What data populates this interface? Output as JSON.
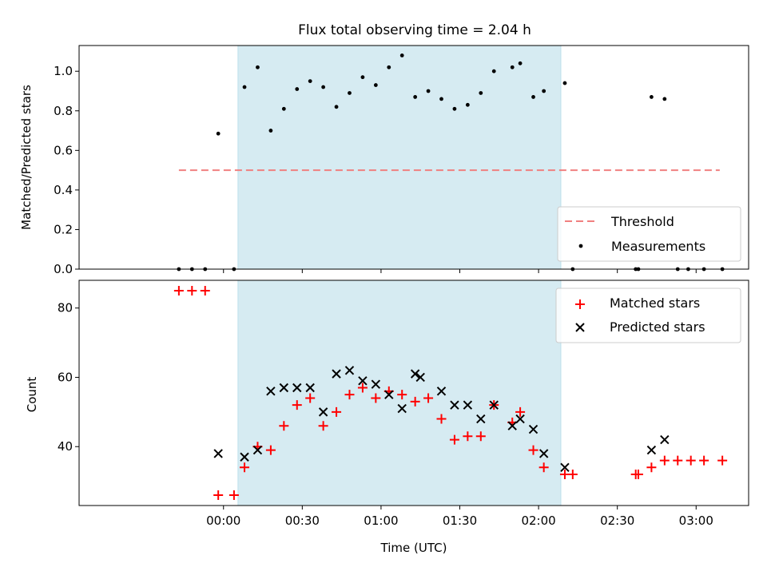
{
  "chart_data": {
    "title": "Flux total observing time = 2.04 h",
    "xlabel": "Time (UTC)",
    "x_unit": "minutes since 00:00 UTC",
    "xlim": [
      -55,
      200
    ],
    "x_ticks": [
      {
        "v": 0,
        "label": "00:00"
      },
      {
        "v": 30,
        "label": "00:30"
      },
      {
        "v": 60,
        "label": "01:00"
      },
      {
        "v": 90,
        "label": "01:30"
      },
      {
        "v": 120,
        "label": "02:00"
      },
      {
        "v": 150,
        "label": "02:30"
      },
      {
        "v": 180,
        "label": "03:00"
      }
    ],
    "observing_span": [
      5.5,
      128.5
    ],
    "top": {
      "type": "scatter",
      "ylabel": "Matched/Predicted stars",
      "ylim": [
        0,
        1.13
      ],
      "y_ticks": [
        {
          "v": 0,
          "label": "0.0"
        },
        {
          "v": 0.2,
          "label": "0.2"
        },
        {
          "v": 0.4,
          "label": "0.4"
        },
        {
          "v": 0.6,
          "label": "0.6"
        },
        {
          "v": 0.8,
          "label": "0.8"
        },
        {
          "v": 1.0,
          "label": "1.0"
        }
      ],
      "threshold": {
        "name": "Threshold",
        "y": 0.5,
        "x_range": [
          -17,
          189
        ],
        "color": "#f08080"
      },
      "measurements": {
        "name": "Measurements",
        "color": "#000000",
        "points": [
          [
            -17,
            0
          ],
          [
            -12,
            0
          ],
          [
            -7,
            0
          ],
          [
            -2,
            0.685
          ],
          [
            4,
            0
          ],
          [
            8,
            0.92
          ],
          [
            13,
            1.02
          ],
          [
            18,
            0.7
          ],
          [
            23,
            0.81
          ],
          [
            28,
            0.91
          ],
          [
            33,
            0.95
          ],
          [
            38,
            0.92
          ],
          [
            43,
            0.82
          ],
          [
            48,
            0.89
          ],
          [
            53,
            0.97
          ],
          [
            58,
            0.93
          ],
          [
            63,
            1.02
          ],
          [
            68,
            1.08
          ],
          [
            73,
            0.87
          ],
          [
            78,
            0.9
          ],
          [
            83,
            0.86
          ],
          [
            88,
            0.81
          ],
          [
            93,
            0.83
          ],
          [
            98,
            0.89
          ],
          [
            103,
            1.0
          ],
          [
            110,
            1.02
          ],
          [
            113,
            1.04
          ],
          [
            118,
            0.87
          ],
          [
            122,
            0.9
          ],
          [
            130,
            0.94
          ],
          [
            133,
            0
          ],
          [
            157,
            0
          ],
          [
            158,
            0
          ],
          [
            163,
            0.87
          ],
          [
            168,
            0.86
          ],
          [
            173,
            0
          ],
          [
            177,
            0
          ],
          [
            183,
            0
          ],
          [
            190,
            0
          ]
        ]
      },
      "legend": [
        "Threshold",
        "Measurements"
      ],
      "legend_position": "lower-right"
    },
    "bottom": {
      "type": "scatter",
      "ylabel": "Count",
      "ylim": [
        23,
        88
      ],
      "y_ticks": [
        {
          "v": 40,
          "label": "40"
        },
        {
          "v": 60,
          "label": "60"
        },
        {
          "v": 80,
          "label": "80"
        }
      ],
      "series": [
        {
          "name": "Matched stars",
          "marker": "plus",
          "color": "#ff0000",
          "points": [
            [
              -17,
              85
            ],
            [
              -12,
              85
            ],
            [
              -7,
              85
            ],
            [
              -2,
              26
            ],
            [
              4,
              26
            ],
            [
              8,
              34
            ],
            [
              13,
              40
            ],
            [
              18,
              39
            ],
            [
              23,
              46
            ],
            [
              28,
              52
            ],
            [
              33,
              54
            ],
            [
              38,
              46
            ],
            [
              43,
              50
            ],
            [
              48,
              55
            ],
            [
              53,
              57
            ],
            [
              58,
              54
            ],
            [
              63,
              56
            ],
            [
              68,
              55
            ],
            [
              73,
              53
            ],
            [
              78,
              54
            ],
            [
              83,
              48
            ],
            [
              88,
              42
            ],
            [
              93,
              43
            ],
            [
              98,
              43
            ],
            [
              103,
              52
            ],
            [
              110,
              47
            ],
            [
              113,
              50
            ],
            [
              118,
              39
            ],
            [
              122,
              34
            ],
            [
              130,
              32
            ],
            [
              133,
              32
            ],
            [
              157,
              32
            ],
            [
              158,
              32
            ],
            [
              163,
              34
            ],
            [
              168,
              36
            ],
            [
              173,
              36
            ],
            [
              178,
              36
            ],
            [
              183,
              36
            ],
            [
              190,
              36
            ]
          ]
        },
        {
          "name": "Predicted stars",
          "marker": "x",
          "color": "#000000",
          "points": [
            [
              -2,
              38
            ],
            [
              8,
              37
            ],
            [
              13,
              39
            ],
            [
              18,
              56
            ],
            [
              23,
              57
            ],
            [
              28,
              57
            ],
            [
              33,
              57
            ],
            [
              38,
              50
            ],
            [
              43,
              61
            ],
            [
              48,
              62
            ],
            [
              53,
              59
            ],
            [
              58,
              58
            ],
            [
              63,
              55
            ],
            [
              68,
              51
            ],
            [
              73,
              61
            ],
            [
              75,
              60
            ],
            [
              83,
              56
            ],
            [
              88,
              52
            ],
            [
              93,
              52
            ],
            [
              98,
              48
            ],
            [
              103,
              52
            ],
            [
              110,
              46
            ],
            [
              113,
              48
            ],
            [
              118,
              45
            ],
            [
              122,
              38
            ],
            [
              130,
              34
            ],
            [
              163,
              39
            ],
            [
              168,
              42
            ]
          ]
        }
      ],
      "legend_position": "upper-right"
    }
  }
}
